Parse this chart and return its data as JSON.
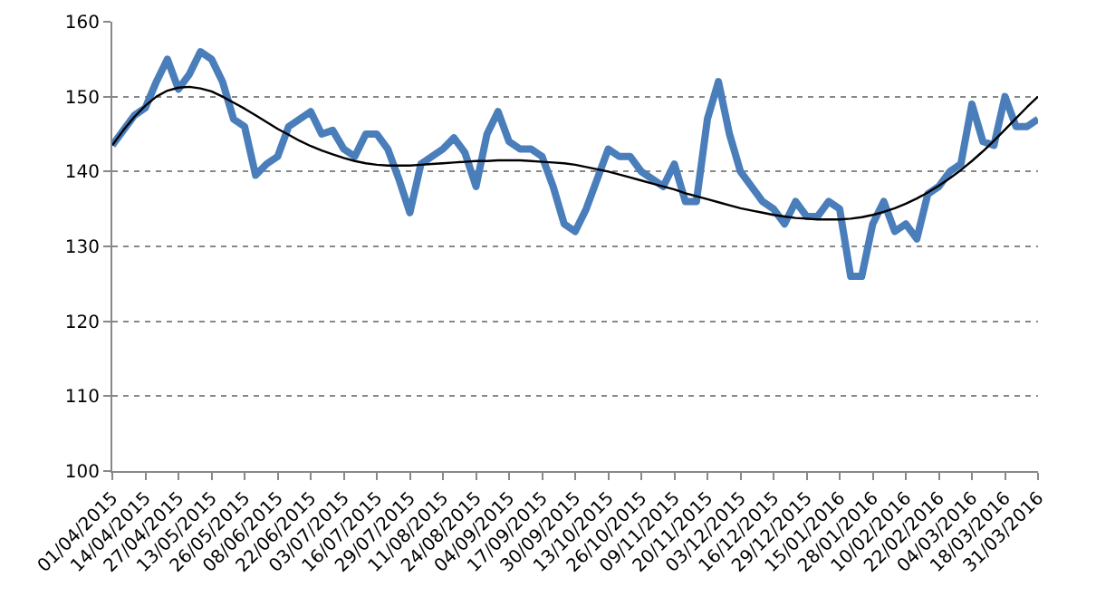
{
  "chart_data": {
    "type": "line",
    "categories": [
      "01/04/2015",
      null,
      null,
      "14/04/2015",
      null,
      null,
      "27/04/2015",
      null,
      null,
      "13/05/2015",
      null,
      null,
      "26/05/2015",
      null,
      null,
      "08/06/2015",
      null,
      null,
      "22/06/2015",
      null,
      null,
      "03/07/2015",
      null,
      null,
      "16/07/2015",
      null,
      null,
      "29/07/2015",
      null,
      null,
      "11/08/2015",
      null,
      null,
      "24/08/2015",
      null,
      null,
      "04/09/2015",
      null,
      null,
      "17/09/2015",
      null,
      null,
      "30/09/2015",
      null,
      null,
      "13/10/2015",
      null,
      null,
      "26/10/2015",
      null,
      null,
      "09/11/2015",
      null,
      null,
      "20/11/2015",
      null,
      null,
      "03/12/2015",
      null,
      null,
      "16/12/2015",
      null,
      null,
      "29/12/2015",
      null,
      null,
      "15/01/2016",
      null,
      null,
      "28/01/2016",
      null,
      null,
      "10/02/2016",
      null,
      null,
      "22/02/2016",
      null,
      null,
      "04/03/2016",
      null,
      null,
      "18/03/2016",
      null,
      null,
      "31/03/2016"
    ],
    "series": [
      {
        "color": "#4a7ebb",
        "values": [
          143.5,
          145.5,
          147.5,
          148.5,
          152,
          155,
          151,
          153,
          156,
          155,
          152,
          147,
          146,
          139.5,
          141,
          142,
          146,
          147,
          148,
          145,
          145.5,
          143,
          142,
          145,
          145,
          143,
          139,
          134.5,
          141,
          142,
          143,
          144.5,
          142.5,
          138,
          145,
          148,
          144,
          143,
          143,
          142,
          138,
          133,
          132,
          135,
          139,
          143,
          142,
          142,
          140,
          139,
          138,
          141,
          136,
          136,
          147,
          152,
          145,
          140,
          138,
          136,
          135,
          133,
          136,
          134,
          134,
          136,
          135,
          126,
          126,
          133,
          136,
          132,
          133,
          131,
          137,
          138,
          140,
          141,
          149,
          144,
          143.5,
          150,
          146,
          146,
          147
        ]
      },
      {
        "color": "#000000",
        "values": [
          143.5,
          145.5,
          147.3,
          148.8,
          150,
          150.8,
          151.2,
          151.3,
          151.1,
          150.7,
          150,
          149.2,
          148.4,
          147.5,
          146.6,
          145.7,
          144.9,
          144.1,
          143.4,
          142.8,
          142.3,
          141.8,
          141.4,
          141.1,
          140.9,
          140.8,
          140.8,
          140.8,
          140.9,
          141,
          141.1,
          141.2,
          141.3,
          141.4,
          141.4,
          141.5,
          141.5,
          141.5,
          141.4,
          141.3,
          141.2,
          141.1,
          140.9,
          140.6,
          140.3,
          140,
          139.6,
          139.2,
          138.8,
          138.4,
          138,
          137.6,
          137.1,
          136.7,
          136.3,
          135.9,
          135.5,
          135.1,
          134.8,
          134.5,
          134.2,
          134,
          133.8,
          133.7,
          133.6,
          133.6,
          133.6,
          133.7,
          133.9,
          134.2,
          134.6,
          135.1,
          135.7,
          136.4,
          137.2,
          138.1,
          139.1,
          140.2,
          141.4,
          142.7,
          144.1,
          145.6,
          147.1,
          148.6,
          150
        ]
      }
    ],
    "ylim": [
      100,
      160
    ],
    "yticks": [
      100,
      110,
      120,
      130,
      140,
      150,
      160
    ],
    "grid": "y",
    "marker": "none",
    "line_style": "solid"
  }
}
